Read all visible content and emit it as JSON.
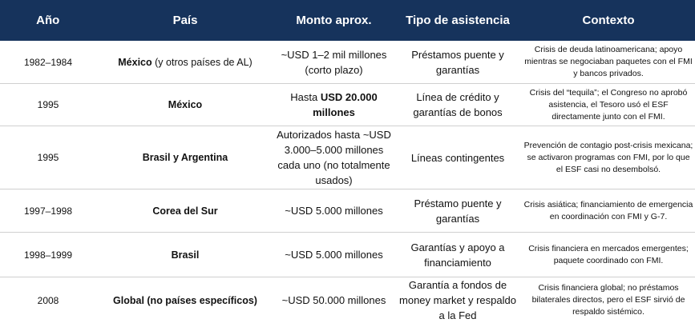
{
  "headers": [
    "Año",
    "País",
    "Monto aprox.",
    "Tipo de asistencia",
    "Contexto"
  ],
  "rows": [
    {
      "year": "1982–1984",
      "country_bold": "México",
      "country_rest": " (y otros países de AL)",
      "amount_pre": "~USD 1–2 mil millones (corto plazo)",
      "amount_bold": "",
      "type": "Préstamos puente y garantías",
      "context": "Crisis de deuda latinoamericana; apoyo mientras se negociaban paquetes con el FMI y bancos privados."
    },
    {
      "year": "1995",
      "country_bold": "México",
      "country_rest": "",
      "amount_pre": "Hasta ",
      "amount_bold": "USD 20.000 millones",
      "type": "Línea de crédito y garantías de bonos",
      "context": "Crisis del “tequila”; el Congreso no aprobó asistencia, el Tesoro usó el ESF directamente junto con el FMI."
    },
    {
      "year": "1995",
      "country_bold": "Brasil y Argentina",
      "country_rest": "",
      "amount_pre": "Autorizados hasta ~USD 3.000–5.000 millones cada uno (no totalmente usados)",
      "amount_bold": "",
      "type": "Líneas contingentes",
      "context": "Prevención de contagio post-crisis mexicana; se activaron programas con FMI, por lo que el ESF casi no desembolsó."
    },
    {
      "year": "1997–1998",
      "country_bold": "Corea del Sur",
      "country_rest": "",
      "amount_pre": "~USD 5.000 millones",
      "amount_bold": "",
      "type": "Préstamo puente y garantías",
      "context": "Crisis asiática; financiamiento de emergencia en coordinación con FMI y G-7."
    },
    {
      "year": "1998–1999",
      "country_bold": "Brasil",
      "country_rest": "",
      "amount_pre": "~USD 5.000 millones",
      "amount_bold": "",
      "type": "Garantías y apoyo a financiamiento",
      "context": "Crisis financiera en mercados emergentes; paquete coordinado con FMI."
    },
    {
      "year": "2008",
      "country_bold": "Global (no países específicos)",
      "country_rest": "",
      "amount_pre": "~USD 50.000 millones",
      "amount_bold": "",
      "type": "Garantía a fondos de money market y respaldo a la Fed",
      "context": "Crisis financiera global; no préstamos bilaterales directos, pero el ESF sirvió de respaldo sistémico."
    }
  ]
}
